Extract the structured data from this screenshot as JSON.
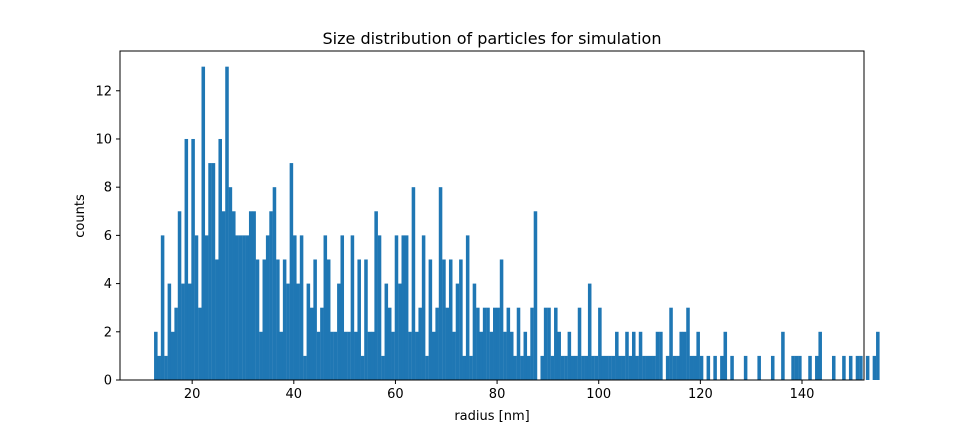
{
  "chart_data": {
    "type": "bar",
    "title": "Size distribution of particles for simulation",
    "xlabel": "radius [nm]",
    "ylabel": "counts",
    "xlim": [
      5.8,
      152.2
    ],
    "ylim": [
      0,
      13.65
    ],
    "xticks": [
      20,
      40,
      60,
      80,
      100,
      120,
      140
    ],
    "yticks": [
      0,
      2,
      4,
      6,
      8,
      10,
      12
    ],
    "bin_width": 0.667,
    "x_start": 12.5,
    "color": "#1f77b4",
    "values": [
      2,
      1,
      6,
      1,
      4,
      2,
      3,
      7,
      4,
      10,
      4,
      10,
      6,
      3,
      13,
      6,
      9,
      9,
      5,
      10,
      7,
      13,
      8,
      7,
      6,
      6,
      6,
      6,
      7,
      7,
      5,
      2,
      5,
      6,
      7,
      8,
      5,
      2,
      5,
      4,
      9,
      6,
      4,
      6,
      1,
      4,
      3,
      5,
      2,
      3,
      6,
      5,
      2,
      2,
      4,
      6,
      2,
      2,
      6,
      2,
      5,
      1,
      5,
      2,
      2,
      7,
      6,
      1,
      4,
      3,
      2,
      6,
      4,
      6,
      6,
      2,
      8,
      2,
      3,
      6,
      1,
      5,
      2,
      3,
      8,
      5,
      3,
      5,
      2,
      4,
      5,
      1,
      6,
      1,
      4,
      3,
      2,
      3,
      3,
      2,
      3,
      3,
      5,
      2,
      3,
      2,
      1,
      3,
      1,
      2,
      1,
      3,
      7,
      0,
      1,
      3,
      3,
      1,
      3,
      2,
      1,
      1,
      2,
      1,
      1,
      3,
      1,
      1,
      4,
      1,
      1,
      3,
      1,
      1,
      1,
      1,
      2,
      1,
      1,
      2,
      1,
      2,
      1,
      2,
      1,
      1,
      1,
      1,
      2,
      2,
      0,
      1,
      3,
      1,
      1,
      2,
      2,
      3,
      1,
      1,
      2,
      1,
      0,
      1,
      0,
      1,
      0,
      1,
      2,
      0,
      1,
      0,
      0,
      0,
      1,
      0,
      0,
      0,
      1,
      0,
      0,
      0,
      1,
      0,
      0,
      2,
      0,
      0,
      1,
      1,
      1,
      0,
      0,
      1,
      0,
      1,
      2,
      0,
      0,
      0,
      1,
      0,
      0,
      1,
      0,
      1,
      0,
      1,
      1,
      0,
      1,
      0,
      1,
      2
    ]
  }
}
